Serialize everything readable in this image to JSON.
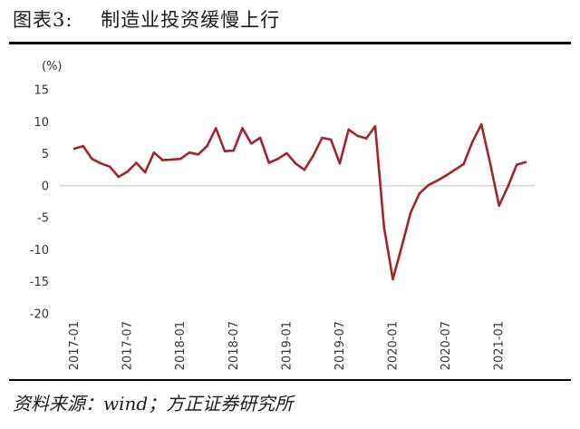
{
  "header": {
    "title": "图表3:    制造业投资缓慢上行"
  },
  "footer": {
    "source": "资料来源：wind；方正证券研究所"
  },
  "chart_data": {
    "type": "line",
    "unit_label": "(%)",
    "ylim": [
      -20,
      15
    ],
    "y_ticks": [
      15,
      10,
      5,
      0,
      -5,
      -10,
      -15,
      -20
    ],
    "x_tick_labels": [
      "2017-01",
      "2017-07",
      "2018-01",
      "2018-07",
      "2019-01",
      "2019-07",
      "2020-01",
      "2020-07",
      "2021-01"
    ],
    "grid": false,
    "legend": "none",
    "line_color": "#a0252d",
    "series": [
      {
        "values": [
          5.8,
          6.2,
          4.2,
          3.5,
          3.0,
          1.4,
          2.2,
          3.6,
          2.1,
          5.2,
          4.0,
          4.1,
          4.2,
          5.2,
          4.9,
          6.2,
          9.0,
          5.4,
          5.5,
          9.0,
          6.6,
          7.5,
          3.6,
          4.2,
          5.1,
          3.5,
          2.5,
          4.7,
          7.5,
          7.2,
          3.5,
          8.8,
          7.8,
          7.4,
          9.3,
          -6.5,
          -14.6,
          -9.5,
          -4.2,
          -1.2,
          0.1,
          0.8,
          1.6,
          2.5,
          3.4,
          6.9,
          9.6,
          3.5,
          -3.1,
          -0.1,
          3.3,
          3.7
        ]
      }
    ]
  }
}
